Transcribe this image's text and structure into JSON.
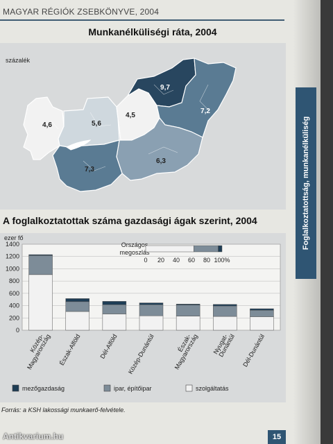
{
  "header": {
    "text": "MAGYAR RÉGIÓK ZSEBKÖNYVE, 2004"
  },
  "map": {
    "title": "Munkanélküliségi ráta, 2004",
    "unit_label": "százalék",
    "regions": [
      {
        "name": "Nyugat-Dunántúl",
        "value": "4,6",
        "color": "#f2f2f2"
      },
      {
        "name": "Közép-Dunántúl",
        "value": "5,6",
        "color": "#cfd8de"
      },
      {
        "name": "Közép-Magyarország",
        "value": "4,5",
        "color": "#f2f2f2"
      },
      {
        "name": "Észak-Magyarország",
        "value": "9,7",
        "color": "#28465f"
      },
      {
        "name": "Észak-Alföld",
        "value": "7,2",
        "color": "#5a7b93"
      },
      {
        "name": "Dél-Alföld",
        "value": "6,3",
        "color": "#8aa0b2"
      },
      {
        "name": "Dél-Dunántúl",
        "value": "7,3",
        "color": "#5a7b93"
      }
    ]
  },
  "side_label": "Foglalkoztatottság, munkanélküliség",
  "chart_data": {
    "type": "bar",
    "title": "A foglalkoztatottak száma gazdasági ágak szerint, 2004",
    "ylabel": "ezer fő",
    "ylim": [
      0,
      1400
    ],
    "yticks": [
      0,
      200,
      400,
      600,
      800,
      1000,
      1200,
      1400
    ],
    "categories": [
      "Közép-Magyarország",
      "Észak-Alföld",
      "Dél-Alföld",
      "Közép-Dunántúl",
      "Észak-Magyarország",
      "Nyugat-Dunántúl",
      "Dél-Dunántúl"
    ],
    "category_labels": [
      [
        "Közép-",
        "Magyarország"
      ],
      [
        "Észak-Alföld"
      ],
      [
        "Dél-Alföld"
      ],
      [
        "Közép-Dunántúl"
      ],
      [
        "Észak-",
        "Magyarország"
      ],
      [
        "Nyugat-",
        "Dunántúl"
      ],
      [
        "Dél-Dunántúl"
      ]
    ],
    "series": [
      {
        "name": "mezőgazdaság",
        "values": [
          15,
          50,
          55,
          30,
          15,
          25,
          25
        ],
        "color": "#1e3d55"
      },
      {
        "name": "ipar, építőipar",
        "values": [
          310,
          160,
          150,
          180,
          180,
          170,
          105
        ],
        "color": "#7d8c98"
      },
      {
        "name": "szolgáltatás",
        "values": [
          905,
          305,
          265,
          235,
          230,
          225,
          220
        ],
        "color": "#f2f2f2"
      }
    ],
    "inset": {
      "label_line1": "Országos",
      "label_line2": "megoszlás",
      "shares": [
        5,
        32,
        63
      ],
      "ticks": [
        "0",
        "20",
        "40",
        "60",
        "80",
        "100%"
      ]
    }
  },
  "source": "Forrás: a KSH lakossági munkaerő-felvétele.",
  "page_number": "15",
  "watermark": "Antikvarium.hu"
}
